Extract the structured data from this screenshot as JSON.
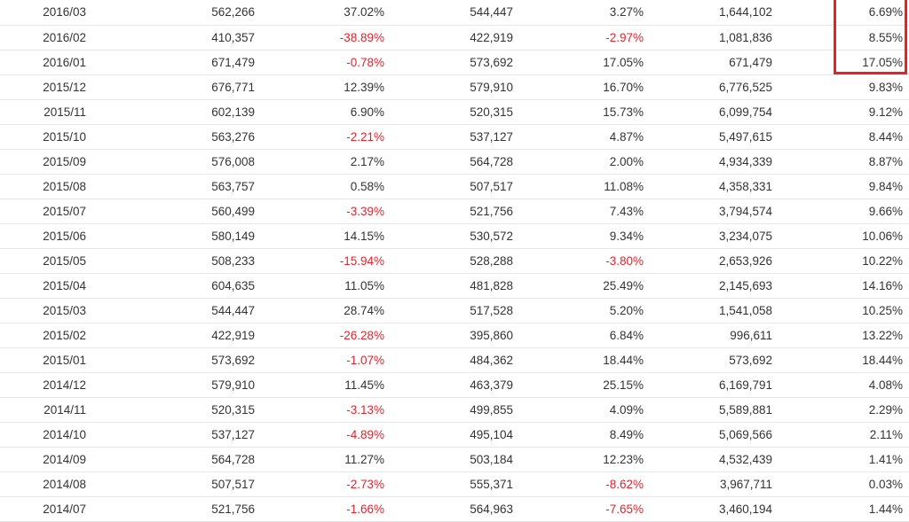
{
  "colors": {
    "negative": "#e8202a",
    "highlight_border": "#e8202a",
    "row_border": "#e6e6e6"
  },
  "highlight": {
    "column": 6,
    "rows": [
      "2016/03",
      "2016/02",
      "2016/01"
    ]
  },
  "table": {
    "rows": [
      [
        "2016/03",
        "562,266",
        "37.02%",
        "544,447",
        "3.27%",
        "1,644,102",
        "6.69%"
      ],
      [
        "2016/02",
        "410,357",
        "-38.89%",
        "422,919",
        "-2.97%",
        "1,081,836",
        "8.55%"
      ],
      [
        "2016/01",
        "671,479",
        "-0.78%",
        "573,692",
        "17.05%",
        "671,479",
        "17.05%"
      ],
      [
        "2015/12",
        "676,771",
        "12.39%",
        "579,910",
        "16.70%",
        "6,776,525",
        "9.83%"
      ],
      [
        "2015/11",
        "602,139",
        "6.90%",
        "520,315",
        "15.73%",
        "6,099,754",
        "9.12%"
      ],
      [
        "2015/10",
        "563,276",
        "-2.21%",
        "537,127",
        "4.87%",
        "5,497,615",
        "8.44%"
      ],
      [
        "2015/09",
        "576,008",
        "2.17%",
        "564,728",
        "2.00%",
        "4,934,339",
        "8.87%"
      ],
      [
        "2015/08",
        "563,757",
        "0.58%",
        "507,517",
        "11.08%",
        "4,358,331",
        "9.84%"
      ],
      [
        "2015/07",
        "560,499",
        "-3.39%",
        "521,756",
        "7.43%",
        "3,794,574",
        "9.66%"
      ],
      [
        "2015/06",
        "580,149",
        "14.15%",
        "530,572",
        "9.34%",
        "3,234,075",
        "10.06%"
      ],
      [
        "2015/05",
        "508,233",
        "-15.94%",
        "528,288",
        "-3.80%",
        "2,653,926",
        "10.22%"
      ],
      [
        "2015/04",
        "604,635",
        "11.05%",
        "481,828",
        "25.49%",
        "2,145,693",
        "14.16%"
      ],
      [
        "2015/03",
        "544,447",
        "28.74%",
        "517,528",
        "5.20%",
        "1,541,058",
        "10.25%"
      ],
      [
        "2015/02",
        "422,919",
        "-26.28%",
        "395,860",
        "6.84%",
        "996,611",
        "13.22%"
      ],
      [
        "2015/01",
        "573,692",
        "-1.07%",
        "484,362",
        "18.44%",
        "573,692",
        "18.44%"
      ],
      [
        "2014/12",
        "579,910",
        "11.45%",
        "463,379",
        "25.15%",
        "6,169,791",
        "4.08%"
      ],
      [
        "2014/11",
        "520,315",
        "-3.13%",
        "499,855",
        "4.09%",
        "5,589,881",
        "2.29%"
      ],
      [
        "2014/10",
        "537,127",
        "-4.89%",
        "495,104",
        "8.49%",
        "5,069,566",
        "2.11%"
      ],
      [
        "2014/09",
        "564,728",
        "11.27%",
        "503,184",
        "12.23%",
        "4,532,439",
        "1.41%"
      ],
      [
        "2014/08",
        "507,517",
        "-2.73%",
        "555,371",
        "-8.62%",
        "3,967,711",
        "0.03%"
      ],
      [
        "2014/07",
        "521,756",
        "-1.66%",
        "564,963",
        "-7.65%",
        "3,460,194",
        "1.44%"
      ]
    ]
  }
}
